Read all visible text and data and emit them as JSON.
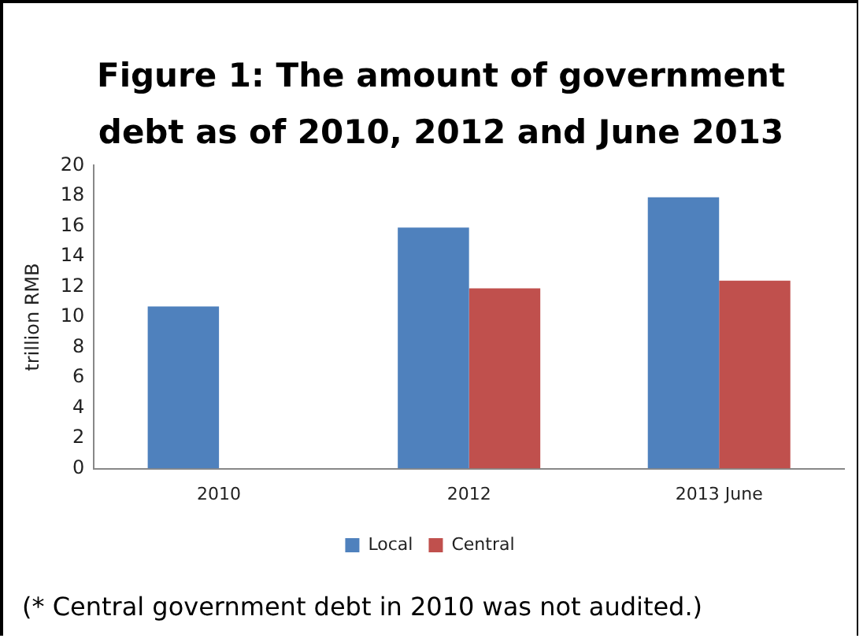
{
  "chart_data": {
    "type": "bar",
    "title": "Figure 1: The amount of government debt as of 2010, 2012 and June 2013",
    "ylabel": "trillion RMB",
    "categories": [
      "2010",
      "2012",
      "2013 June"
    ],
    "series": [
      {
        "name": "Local",
        "color": "#4f81bd",
        "values": [
          10.7,
          15.9,
          17.9
        ]
      },
      {
        "name": "Central",
        "color": "#c0504d",
        "values": [
          null,
          11.9,
          12.4
        ]
      }
    ],
    "ylim": [
      0,
      20
    ],
    "yticks": [
      0,
      2,
      4,
      6,
      8,
      10,
      12,
      14,
      16,
      18,
      20
    ],
    "grid": false,
    "legend": "bottom",
    "annotations": [
      "(* Central government debt in 2010 was not audited.)"
    ]
  }
}
